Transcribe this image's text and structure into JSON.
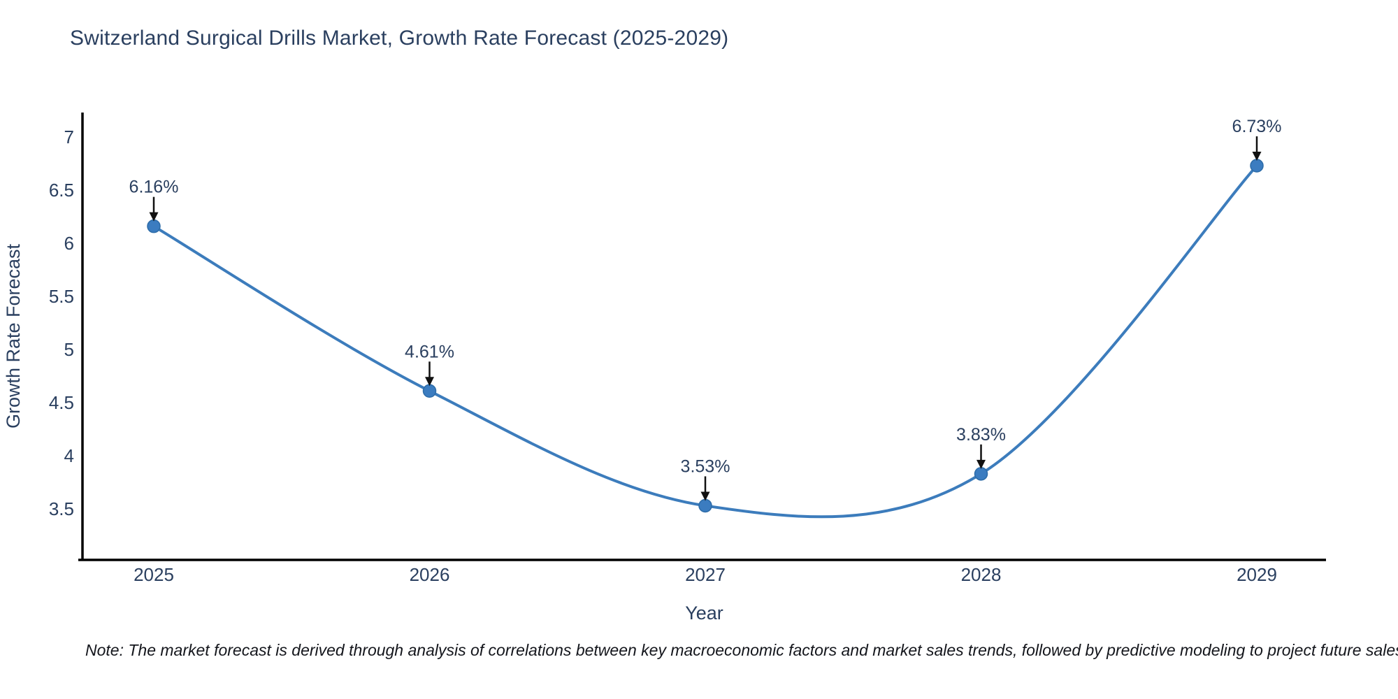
{
  "title": "Switzerland Surgical Drills Market, Growth Rate Forecast (2025-2029)",
  "note": "Note: The market forecast is derived through analysis of correlations between key macroeconomic factors and market sales trends, followed by predictive modeling to project future sales",
  "chart_data": {
    "type": "line",
    "title": "Switzerland Surgical Drills Market, Growth Rate Forecast (2025-2029)",
    "xlabel": "Year",
    "ylabel": "Growth Rate Forecast",
    "x": [
      "2025",
      "2026",
      "2027",
      "2028",
      "2029"
    ],
    "series": [
      {
        "name": "Growth Rate Forecast",
        "values": [
          6.16,
          4.61,
          3.53,
          3.83,
          6.73
        ]
      }
    ],
    "point_labels": [
      "6.16%",
      "4.61%",
      "3.53%",
      "3.83%",
      "6.73%"
    ],
    "yticks": [
      {
        "value": 3.5,
        "label": "3.5"
      },
      {
        "value": 4,
        "label": "4"
      },
      {
        "value": 4.5,
        "label": "4.5"
      },
      {
        "value": 5,
        "label": "5"
      },
      {
        "value": 5.5,
        "label": "5.5"
      },
      {
        "value": 6,
        "label": "6"
      },
      {
        "value": 6.5,
        "label": "6.5"
      },
      {
        "value": 7,
        "label": "7"
      }
    ],
    "ylim": [
      3.02,
      7.23
    ],
    "line_shape": "spline",
    "grid": false,
    "legend": "none",
    "colors": {
      "line": "#3c7cbc",
      "marker": "#3b7cc0",
      "marker_edge": "#2d6ca8",
      "axis": "#000000",
      "arrow": "#111111",
      "text": "#2a3f5f",
      "note_text": "#14161c"
    }
  }
}
